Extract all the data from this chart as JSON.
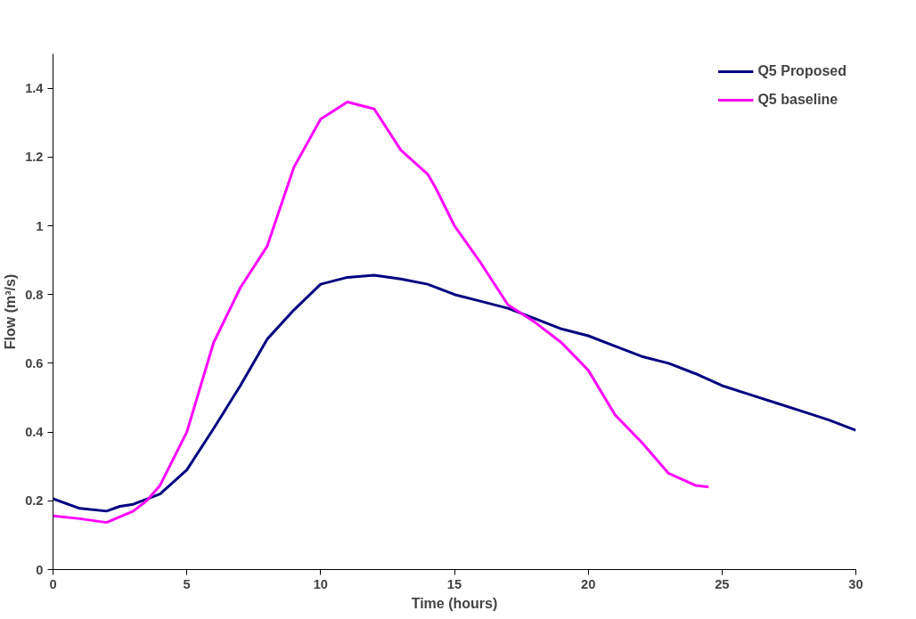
{
  "chart_data": {
    "type": "line",
    "xlabel": "Time (hours)",
    "ylabel": "Flow (m³/s)",
    "xlim": [
      0,
      30
    ],
    "xticks": [
      0,
      5,
      10,
      15,
      20,
      25,
      30
    ],
    "ylim": [
      0,
      1.5
    ],
    "yticks": [
      0,
      0.2,
      0.4,
      0.6,
      0.8,
      1,
      1.2,
      1.4
    ],
    "grid": false,
    "legend": "top right",
    "marker": "none",
    "line_style": "solid",
    "series": [
      {
        "name": "Q5 Proposed",
        "color": "#000080",
        "x": [
          0,
          1,
          2,
          2.5,
          3,
          4,
          5,
          6,
          7,
          8,
          9,
          10,
          11,
          12,
          13,
          14,
          15,
          16,
          17,
          18,
          19,
          20,
          21,
          22,
          23,
          24,
          25,
          26,
          27,
          28,
          29,
          30
        ],
        "values": [
          0.206,
          0.178,
          0.17,
          0.184,
          0.19,
          0.22,
          0.29,
          0.41,
          0.535,
          0.67,
          0.755,
          0.83,
          0.85,
          0.856,
          0.845,
          0.83,
          0.8,
          0.78,
          0.76,
          0.73,
          0.7,
          0.68,
          0.65,
          0.62,
          0.6,
          0.57,
          0.535,
          0.51,
          0.485,
          0.46,
          0.435,
          0.405
        ]
      },
      {
        "name": "Q5 baseline",
        "color": "#ff00ff",
        "x": [
          0,
          1,
          2,
          3,
          3.5,
          4,
          5,
          6,
          7,
          8,
          9,
          10,
          11,
          12,
          13,
          14,
          14.3,
          15,
          16,
          17,
          18,
          19,
          20,
          21,
          22,
          23,
          24,
          24.5
        ],
        "values": [
          0.156,
          0.148,
          0.137,
          0.17,
          0.2,
          0.245,
          0.4,
          0.66,
          0.82,
          0.94,
          1.17,
          1.31,
          1.36,
          1.34,
          1.22,
          1.15,
          1.11,
          1.0,
          0.89,
          0.77,
          0.72,
          0.66,
          0.58,
          0.45,
          0.37,
          0.28,
          0.245,
          0.24
        ]
      }
    ]
  }
}
